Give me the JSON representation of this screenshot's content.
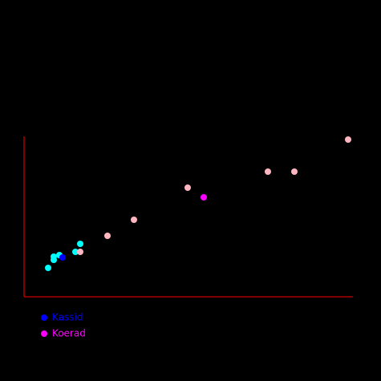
{
  "chart_data": {
    "type": "scatter",
    "xlim": [
      0,
      410
    ],
    "ylim": [
      0,
      200
    ],
    "axis_color": "#ff0000",
    "series": [
      {
        "name": "Kassid",
        "color": "#0000ff",
        "faded_color": "#00ffff",
        "highlight": 6,
        "x": [
          30,
          37,
          37,
          44,
          64,
          70,
          48
        ],
        "values": [
          36,
          50,
          46,
          52,
          56,
          66,
          49
        ]
      },
      {
        "name": "Koerad",
        "color": "#ff00ff",
        "faded_color": "#ffb6c1",
        "highlight": 7,
        "x": [
          70,
          104,
          137,
          204,
          304,
          337,
          404,
          224
        ],
        "values": [
          56,
          76,
          96,
          136,
          156,
          156,
          196,
          124
        ]
      }
    ]
  }
}
